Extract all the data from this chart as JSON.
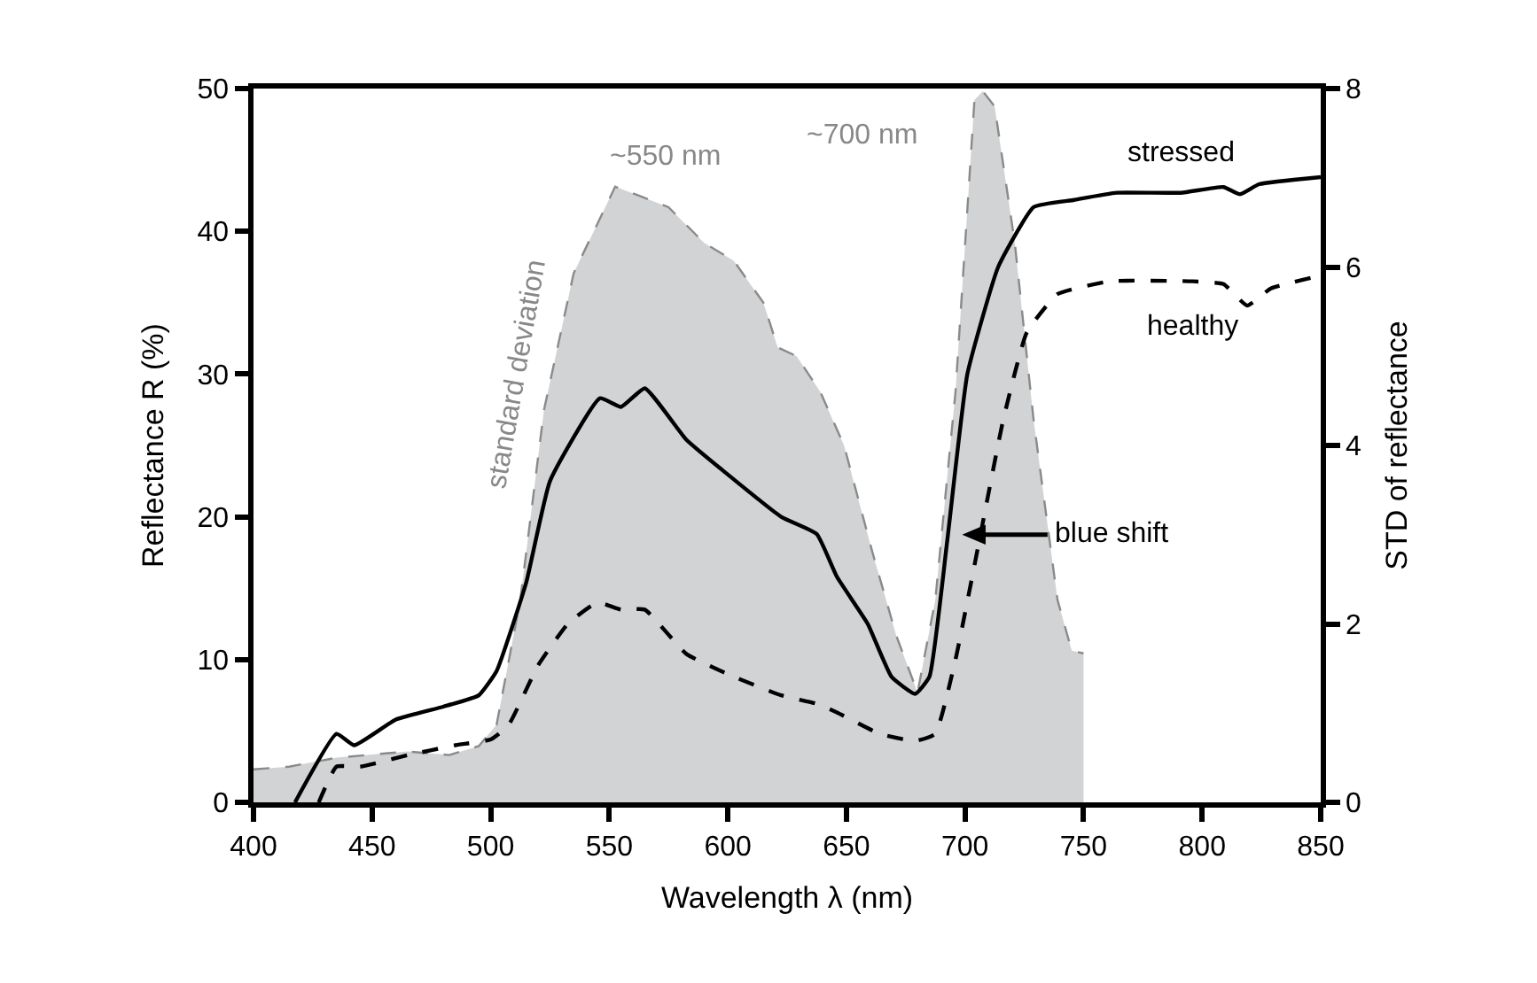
{
  "chart_data": {
    "type": "line",
    "xlabel": "Wavelength λ (nm)",
    "ylabel": "Reflectance R (%)",
    "y2label": "STD of reflectance",
    "xlim": [
      400,
      850
    ],
    "xticks": [
      400,
      450,
      500,
      550,
      600,
      650,
      700,
      750,
      800,
      850
    ],
    "ylim": [
      0,
      50
    ],
    "yticks": [
      0,
      10,
      20,
      30,
      40,
      50
    ],
    "y2lim": [
      0,
      8
    ],
    "y2ticks": [
      0,
      2,
      4,
      6,
      8
    ],
    "legend": false,
    "marker": "none",
    "series": [
      {
        "type": "area",
        "axis": "y2",
        "color": "#d1d3d4",
        "line_style": "dashed",
        "x": [
          400,
          415,
          435,
          465,
          482.5,
          495,
          502.5,
          512.5,
          522.5,
          535,
          552.5,
          562.5,
          575,
          590,
          602.5,
          615,
          621,
          629,
          639,
          649,
          661,
          671,
          680,
          687.5,
          696,
          704,
          707.5,
          712.5,
          721,
          729,
          739,
          745,
          750
        ],
        "values": [
          0.37,
          0.4,
          0.5,
          0.57,
          0.53,
          0.63,
          0.87,
          2.27,
          4.4,
          5.93,
          6.9,
          6.8,
          6.67,
          6.27,
          6.07,
          5.6,
          5.1,
          5.0,
          4.6,
          4.0,
          2.8,
          1.87,
          1.23,
          2.27,
          4.6,
          7.87,
          7.97,
          7.8,
          6.27,
          4.27,
          2.27,
          1.7,
          1.67
        ]
      },
      {
        "name": "stressed",
        "color": "#000000",
        "line_style": "solid",
        "x": [
          417.5,
          435,
          442.5,
          460,
          480,
          495,
          502.5,
          515,
          525,
          546,
          555,
          565,
          582.5,
          597.5,
          622.5,
          637.5,
          646,
          659,
          669,
          679,
          685,
          692.5,
          701,
          714,
          729,
          746,
          764,
          791,
          809,
          816,
          824,
          850
        ],
        "values": [
          0,
          4.8,
          4.0,
          5.8,
          6.7,
          7.5,
          9.2,
          15.4,
          22.5,
          28.3,
          27.7,
          29.0,
          25.4,
          23.3,
          20.0,
          18.8,
          15.8,
          12.5,
          8.8,
          7.6,
          8.8,
          18.3,
          30,
          37.5,
          41.7,
          42.2,
          42.7,
          42.7,
          43.1,
          42.6,
          43.3,
          43.8
        ]
      },
      {
        "name": "healthy",
        "color": "#000000",
        "line_style": "dashed",
        "x": [
          427.5,
          435,
          445,
          465,
          485,
          500,
          507.5,
          520,
          532.5,
          545,
          555,
          565,
          582.5,
          602.5,
          622.5,
          637.5,
          646,
          664,
          679,
          687.5,
          696,
          706,
          716,
          726,
          739,
          761,
          796,
          809,
          819,
          829,
          850
        ],
        "values": [
          0,
          2.5,
          2.5,
          3.3,
          4.0,
          4.4,
          5.4,
          9.6,
          12.5,
          14.0,
          13.5,
          13.5,
          10.4,
          8.8,
          7.5,
          6.9,
          6.3,
          4.8,
          4.3,
          4.8,
          10,
          18.3,
          26.7,
          32.9,
          35.6,
          36.5,
          36.5,
          36.3,
          34.8,
          36,
          36.9
        ]
      }
    ],
    "annotations": [
      "~550 nm",
      "~700 nm",
      "standard deviation",
      "blue shift"
    ]
  }
}
